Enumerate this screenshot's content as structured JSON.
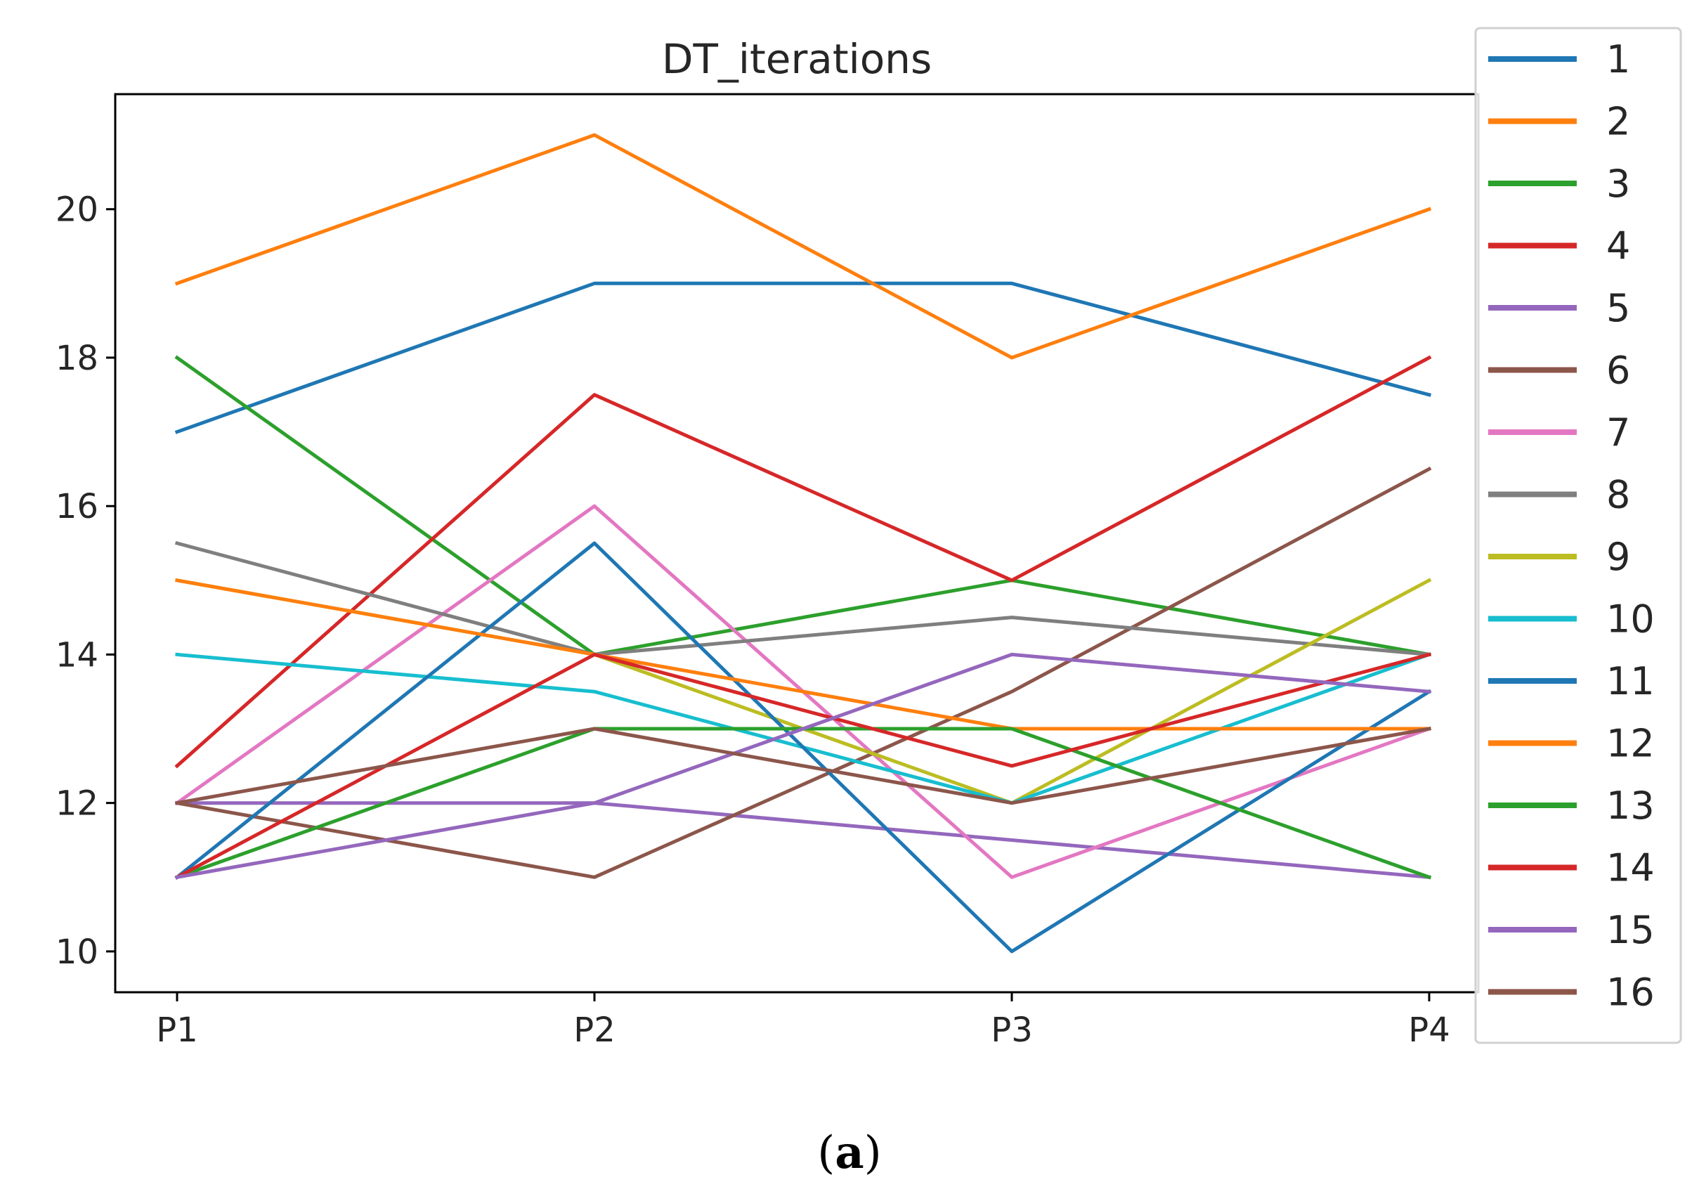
{
  "chart_data": {
    "type": "line",
    "title": "DT_iterations",
    "xlabel": "",
    "ylabel": "",
    "categories": [
      "P1",
      "P2",
      "P3",
      "P4"
    ],
    "ylim": [
      9.45,
      21.55
    ],
    "yticks": [
      10,
      12,
      14,
      16,
      18,
      20
    ],
    "grid": false,
    "legend_position": "right-outside",
    "series": [
      {
        "name": "1",
        "color": "#1f77b4",
        "values": [
          17,
          19,
          19,
          17.5
        ]
      },
      {
        "name": "2",
        "color": "#ff7f0e",
        "values": [
          19,
          21,
          18,
          20
        ]
      },
      {
        "name": "3",
        "color": "#2ca02c",
        "values": [
          18,
          14,
          15,
          14
        ]
      },
      {
        "name": "4",
        "color": "#d62728",
        "values": [
          12.5,
          17.5,
          15,
          18
        ]
      },
      {
        "name": "5",
        "color": "#9467bd",
        "values": [
          12,
          12,
          11.5,
          11
        ]
      },
      {
        "name": "6",
        "color": "#8c564b",
        "values": [
          12,
          11,
          13.5,
          16.5
        ]
      },
      {
        "name": "7",
        "color": "#e377c2",
        "values": [
          12,
          16,
          11,
          13
        ]
      },
      {
        "name": "8",
        "color": "#7f7f7f",
        "values": [
          15.5,
          14,
          14.5,
          14
        ]
      },
      {
        "name": "9",
        "color": "#bcbd22",
        "values": [
          15,
          14,
          12,
          15
        ]
      },
      {
        "name": "10",
        "color": "#17becf",
        "values": [
          14,
          13.5,
          12,
          14
        ]
      },
      {
        "name": "11",
        "color": "#1f77b4",
        "values": [
          11,
          15.5,
          10,
          13.5
        ]
      },
      {
        "name": "12",
        "color": "#ff7f0e",
        "values": [
          15,
          14,
          13,
          13
        ]
      },
      {
        "name": "13",
        "color": "#2ca02c",
        "values": [
          11,
          13,
          13,
          11
        ]
      },
      {
        "name": "14",
        "color": "#d62728",
        "values": [
          11,
          14,
          12.5,
          14
        ]
      },
      {
        "name": "15",
        "color": "#9467bd",
        "values": [
          11,
          12,
          14,
          13.5
        ]
      },
      {
        "name": "16",
        "color": "#8c564b",
        "values": [
          12,
          13,
          12,
          13
        ]
      }
    ]
  },
  "caption": {
    "open": "(",
    "letter": "a",
    "close": ")"
  }
}
